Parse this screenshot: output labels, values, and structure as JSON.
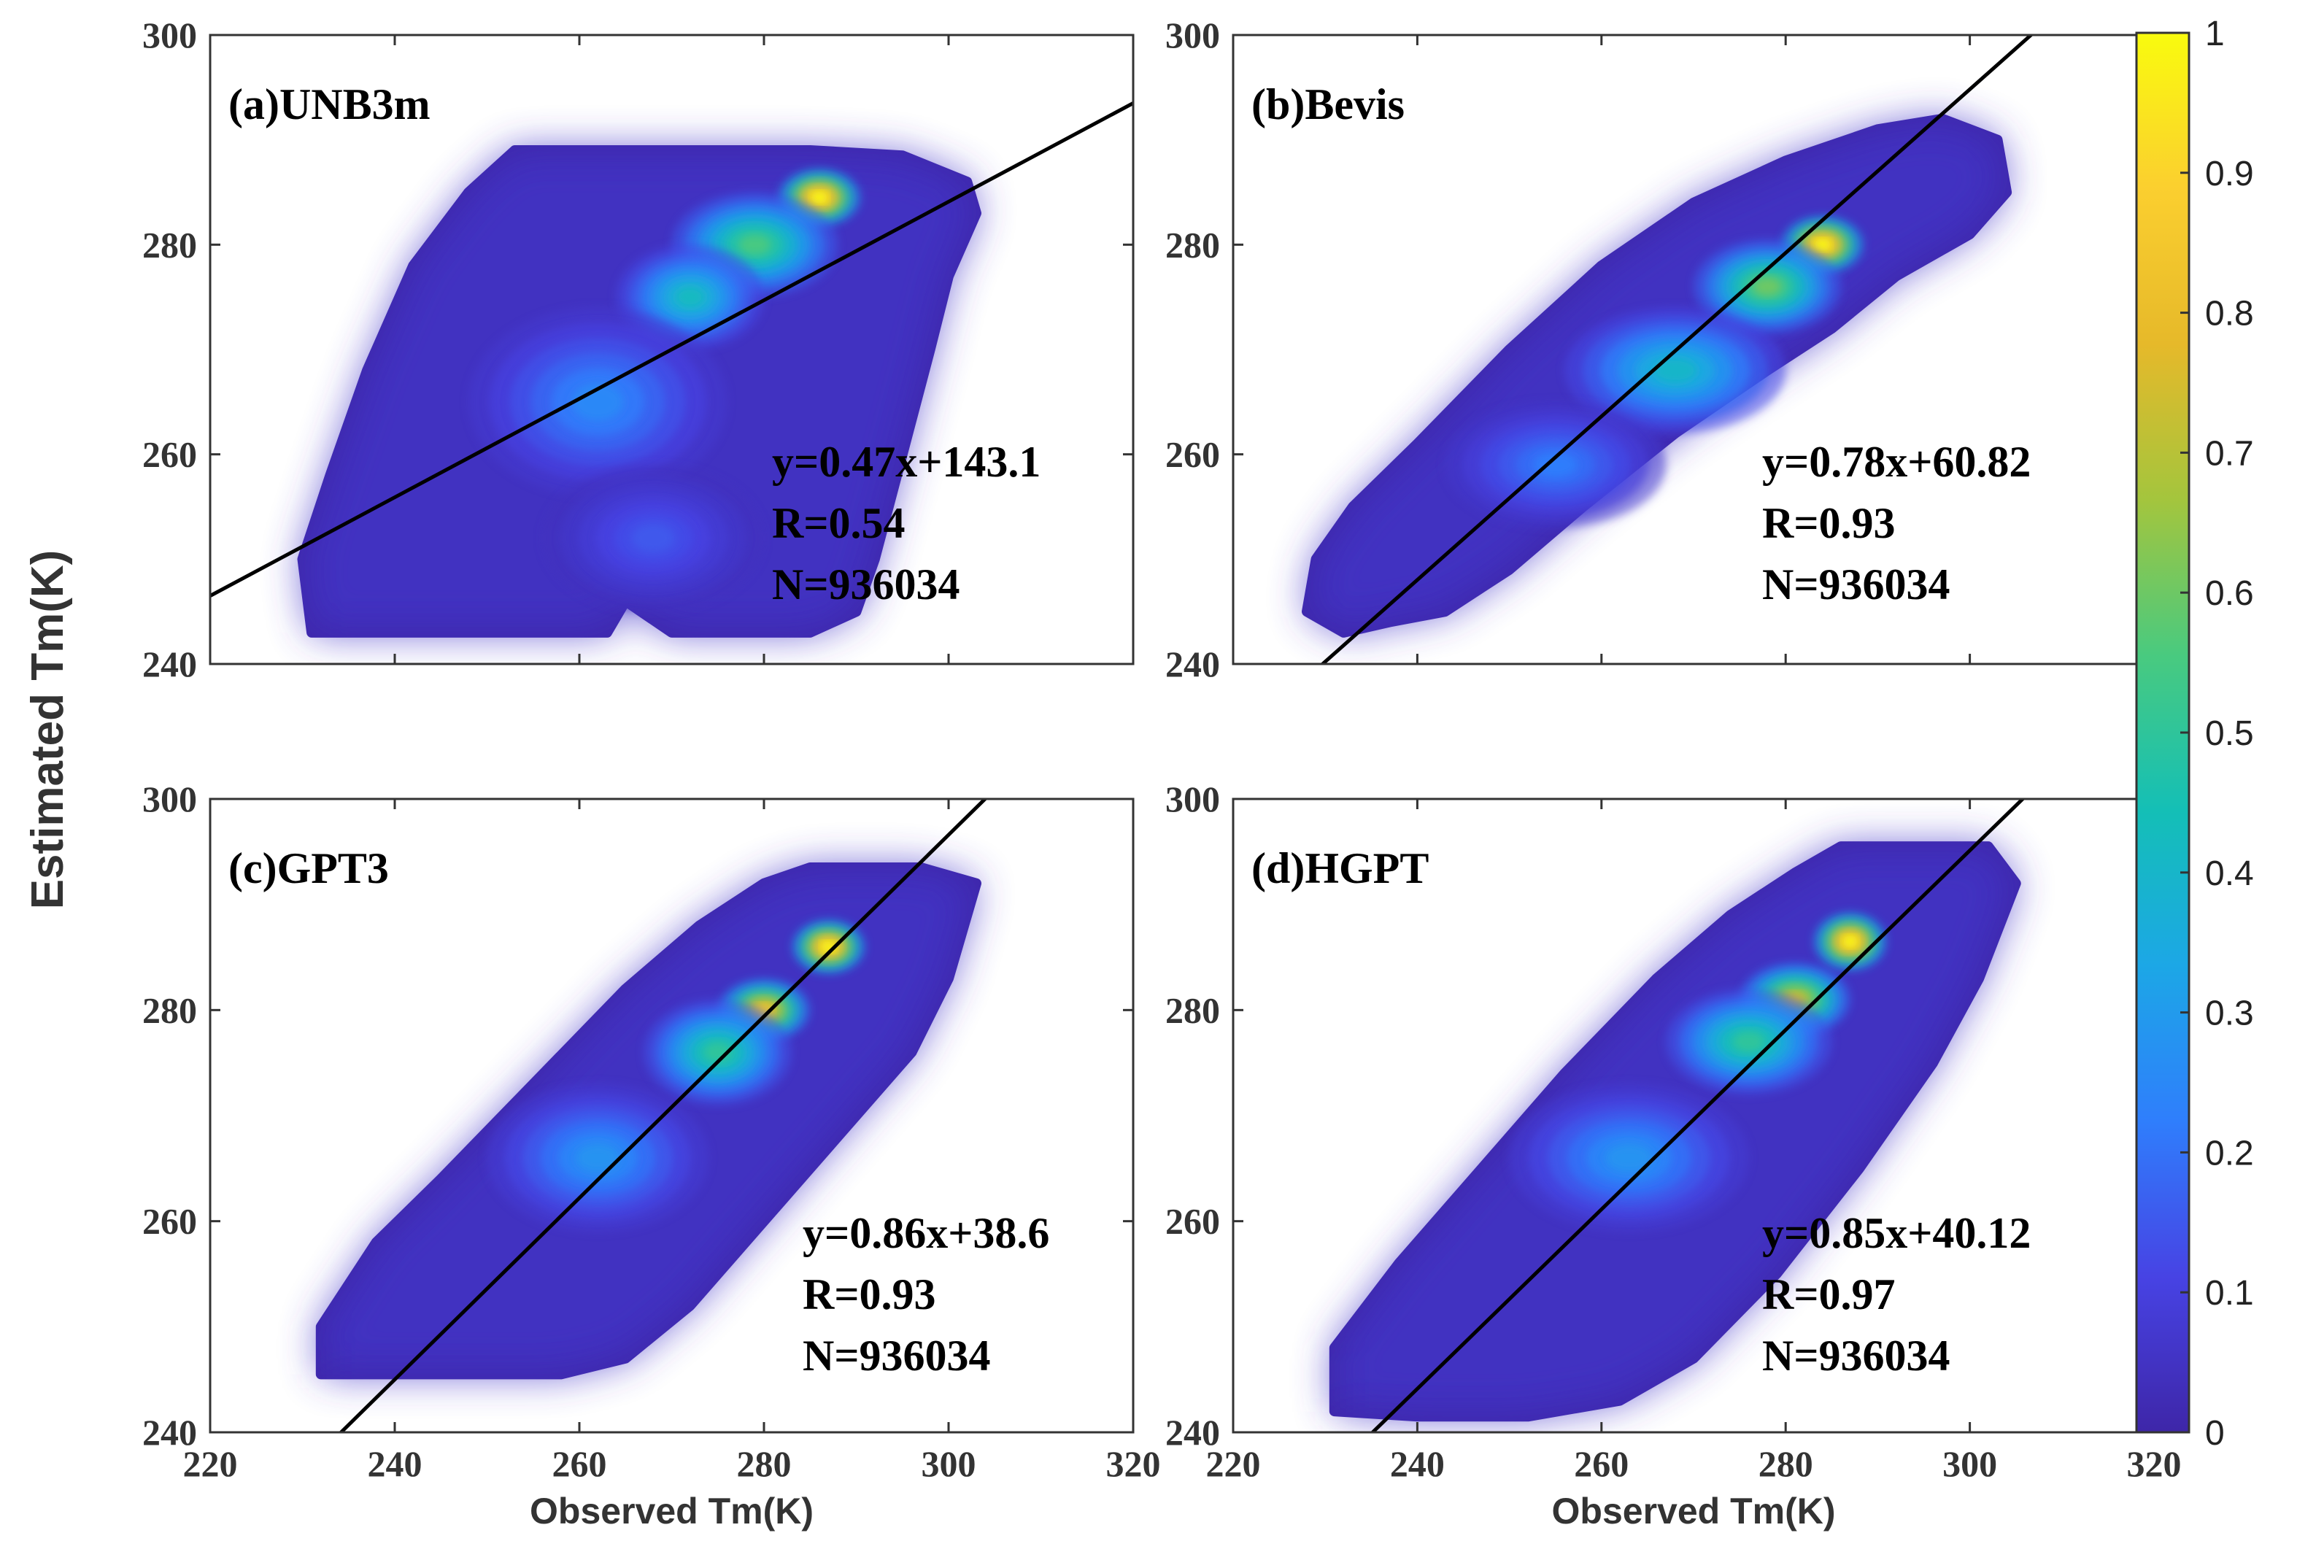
{
  "figure": {
    "ylabel": "Estimated Tm(K)",
    "colorbar": {
      "ticks": [
        "0",
        "0.1",
        "0.2",
        "0.3",
        "0.4",
        "0.5",
        "0.6",
        "0.7",
        "0.8",
        "0.9",
        "1"
      ],
      "stops": [
        "#3e26a8",
        "#4743e4",
        "#2f7efc",
        "#1ca7e6",
        "#14bfb6",
        "#49ca7f",
        "#a4c53d",
        "#e6b92a",
        "#fbcf2f",
        "#f9fb0e"
      ]
    }
  },
  "chart_data": [
    {
      "type": "scatter",
      "panel": "a",
      "title": "(a)UNB3m",
      "xlabel": "",
      "ylabel": "",
      "xlim": [
        220,
        320
      ],
      "ylim": [
        240,
        300
      ],
      "xticks": [
        "220",
        "240",
        "260",
        "280",
        "300",
        "320"
      ],
      "yticks": [
        "240",
        "260",
        "280",
        "300"
      ],
      "fit": {
        "slope": 0.47,
        "intercept": 143.1
      },
      "annotations": [
        "y=0.47x+143.1",
        "R=0.54",
        "N=936034"
      ],
      "cloud": [
        [
          231,
          243
        ],
        [
          236,
          243
        ],
        [
          255,
          243
        ],
        [
          263,
          243
        ],
        [
          265,
          246
        ],
        [
          270,
          243
        ],
        [
          285,
          243
        ],
        [
          290,
          245
        ],
        [
          292,
          250
        ],
        [
          295,
          260
        ],
        [
          298,
          270
        ],
        [
          300,
          277
        ],
        [
          303,
          283
        ],
        [
          302,
          286
        ],
        [
          295,
          288.5
        ],
        [
          285,
          289
        ],
        [
          270,
          289
        ],
        [
          260,
          289
        ],
        [
          253,
          289
        ],
        [
          248,
          285
        ],
        [
          242,
          278
        ],
        [
          237,
          268
        ],
        [
          233,
          258
        ],
        [
          230,
          250
        ]
      ],
      "hotspots": [
        {
          "x": 286,
          "y": 284.5,
          "rx": 4.5,
          "ry": 2.8,
          "d": 1.0
        },
        {
          "x": 279,
          "y": 280,
          "rx": 9,
          "ry": 5,
          "d": 0.55
        },
        {
          "x": 272,
          "y": 275,
          "rx": 8,
          "ry": 5,
          "d": 0.42
        },
        {
          "x": 262,
          "y": 265,
          "rx": 14,
          "ry": 9,
          "d": 0.25
        },
        {
          "x": 268,
          "y": 252,
          "rx": 12,
          "ry": 7,
          "d": 0.15
        }
      ]
    },
    {
      "type": "scatter",
      "panel": "b",
      "title": "(b)Bevis",
      "xlabel": "",
      "ylabel": "",
      "xlim": [
        220,
        320
      ],
      "ylim": [
        240,
        300
      ],
      "xticks": [
        "220",
        "240",
        "260",
        "280",
        "300",
        "320"
      ],
      "yticks": [
        "240",
        "260",
        "280",
        "300"
      ],
      "fit": {
        "slope": 0.78,
        "intercept": 60.82
      },
      "annotations": [
        "y=0.78x+60.82",
        "R=0.93",
        "N=936034"
      ],
      "cloud": [
        [
          228,
          245
        ],
        [
          229,
          250
        ],
        [
          233,
          255
        ],
        [
          240,
          261
        ],
        [
          250,
          270
        ],
        [
          260,
          278
        ],
        [
          270,
          284
        ],
        [
          280,
          288
        ],
        [
          290,
          291
        ],
        [
          297,
          292
        ],
        [
          303,
          290
        ],
        [
          304,
          285
        ],
        [
          300,
          281
        ],
        [
          292,
          277
        ],
        [
          285,
          272
        ],
        [
          278,
          268
        ],
        [
          268,
          262
        ],
        [
          258,
          255
        ],
        [
          250,
          249
        ],
        [
          243,
          245
        ],
        [
          237,
          244
        ],
        [
          232,
          243
        ]
      ],
      "hotspots": [
        {
          "x": 284,
          "y": 280,
          "rx": 4.5,
          "ry": 2.8,
          "d": 1.0
        },
        {
          "x": 278,
          "y": 276,
          "rx": 8,
          "ry": 4.5,
          "d": 0.6
        },
        {
          "x": 268,
          "y": 268,
          "rx": 12,
          "ry": 6,
          "d": 0.4
        },
        {
          "x": 255,
          "y": 259,
          "rx": 12,
          "ry": 6,
          "d": 0.22
        }
      ]
    },
    {
      "type": "scatter",
      "panel": "c",
      "title": "(c)GPT3",
      "xlabel": "Observed Tm(K)",
      "ylabel": "",
      "xlim": [
        220,
        320
      ],
      "ylim": [
        240,
        300
      ],
      "xticks": [
        "220",
        "240",
        "260",
        "280",
        "300",
        "320"
      ],
      "yticks": [
        "240",
        "260",
        "280",
        "300"
      ],
      "fit": {
        "slope": 0.86,
        "intercept": 38.6
      },
      "annotations": [
        "y=0.86x+38.6",
        "R=0.93",
        "N=936034"
      ],
      "cloud": [
        [
          232,
          245.5
        ],
        [
          232,
          250
        ],
        [
          238,
          258
        ],
        [
          245,
          264
        ],
        [
          255,
          273
        ],
        [
          265,
          282
        ],
        [
          273,
          288
        ],
        [
          280,
          292
        ],
        [
          285,
          293.5
        ],
        [
          297,
          293.5
        ],
        [
          303,
          292
        ],
        [
          300,
          283
        ],
        [
          296,
          276
        ],
        [
          288,
          268
        ],
        [
          280,
          260
        ],
        [
          272,
          252
        ],
        [
          265,
          247
        ],
        [
          258,
          245.5
        ],
        [
          246,
          245.5
        ]
      ],
      "hotspots": [
        {
          "x": 287,
          "y": 286,
          "rx": 4,
          "ry": 2.6,
          "d": 1.0
        },
        {
          "x": 280,
          "y": 280,
          "rx": 5,
          "ry": 3,
          "d": 0.85
        },
        {
          "x": 275,
          "y": 276,
          "rx": 8,
          "ry": 5,
          "d": 0.5
        },
        {
          "x": 262,
          "y": 266,
          "rx": 12,
          "ry": 7,
          "d": 0.28
        }
      ]
    },
    {
      "type": "scatter",
      "panel": "d",
      "title": "(d)HGPT",
      "xlabel": "Observed Tm(K)",
      "ylabel": "",
      "xlim": [
        220,
        320
      ],
      "ylim": [
        240,
        300
      ],
      "xticks": [
        "220",
        "240",
        "260",
        "280",
        "300",
        "320"
      ],
      "yticks": [
        "240",
        "260",
        "280",
        "300"
      ],
      "fit": {
        "slope": 0.85,
        "intercept": 40.12
      },
      "annotations": [
        "y=0.85x+40.12",
        "R=0.97",
        "N=936034"
      ],
      "cloud": [
        [
          231,
          242
        ],
        [
          231,
          248
        ],
        [
          238,
          256
        ],
        [
          246,
          264
        ],
        [
          256,
          274
        ],
        [
          266,
          283
        ],
        [
          274,
          289
        ],
        [
          281,
          293
        ],
        [
          286,
          295.5
        ],
        [
          302,
          295.5
        ],
        [
          305,
          292
        ],
        [
          301,
          283
        ],
        [
          296,
          275
        ],
        [
          288,
          265
        ],
        [
          279,
          255
        ],
        [
          270,
          247
        ],
        [
          262,
          243
        ],
        [
          252,
          241.5
        ],
        [
          240,
          241.5
        ]
      ],
      "hotspots": [
        {
          "x": 287,
          "y": 286.5,
          "rx": 4,
          "ry": 2.8,
          "d": 1.0
        },
        {
          "x": 281,
          "y": 281,
          "rx": 6,
          "ry": 3.5,
          "d": 0.75
        },
        {
          "x": 276,
          "y": 277,
          "rx": 9,
          "ry": 5,
          "d": 0.5
        },
        {
          "x": 263,
          "y": 266,
          "rx": 13,
          "ry": 7,
          "d": 0.28
        }
      ]
    }
  ]
}
